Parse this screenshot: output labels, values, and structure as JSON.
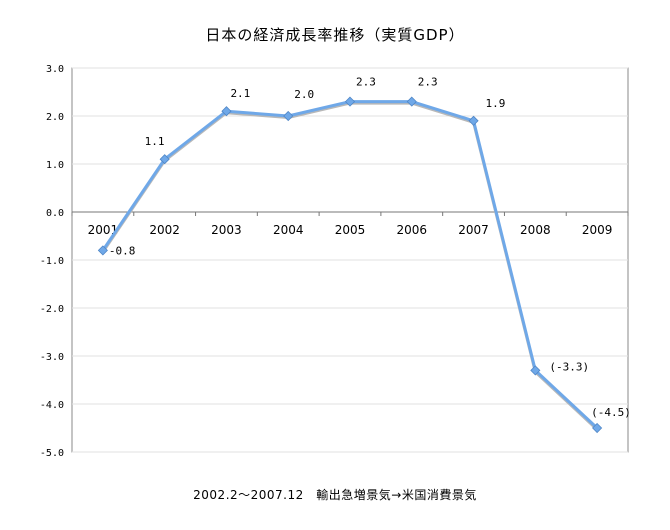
{
  "chart_data": {
    "type": "line",
    "title": "日本の経済成長率推移（実質GDP）",
    "caption": "2002.2〜2007.12　輸出急増景気→米国消費景気",
    "categories": [
      "2001",
      "2002",
      "2003",
      "2004",
      "2005",
      "2006",
      "2007",
      "2008",
      "2009"
    ],
    "series": [
      {
        "values": [
          -0.8,
          1.1,
          2.1,
          2.0,
          2.3,
          2.3,
          1.9,
          -3.3,
          -4.5
        ],
        "color": "#6fa8e8"
      }
    ],
    "data_labels": [
      "-0.8",
      "1.1",
      "2.1",
      "2.0",
      "2.3",
      "2.3",
      "1.9",
      "(-3.3)",
      "(-4.5)"
    ],
    "y_ticks": [
      "3.0",
      "2.0",
      "1.0",
      "0.0",
      "-1.0",
      "-2.0",
      "-3.0",
      "-4.0",
      "-5.0"
    ],
    "ylim": [
      -5.0,
      3.0
    ],
    "grid": true,
    "legend": "none"
  }
}
